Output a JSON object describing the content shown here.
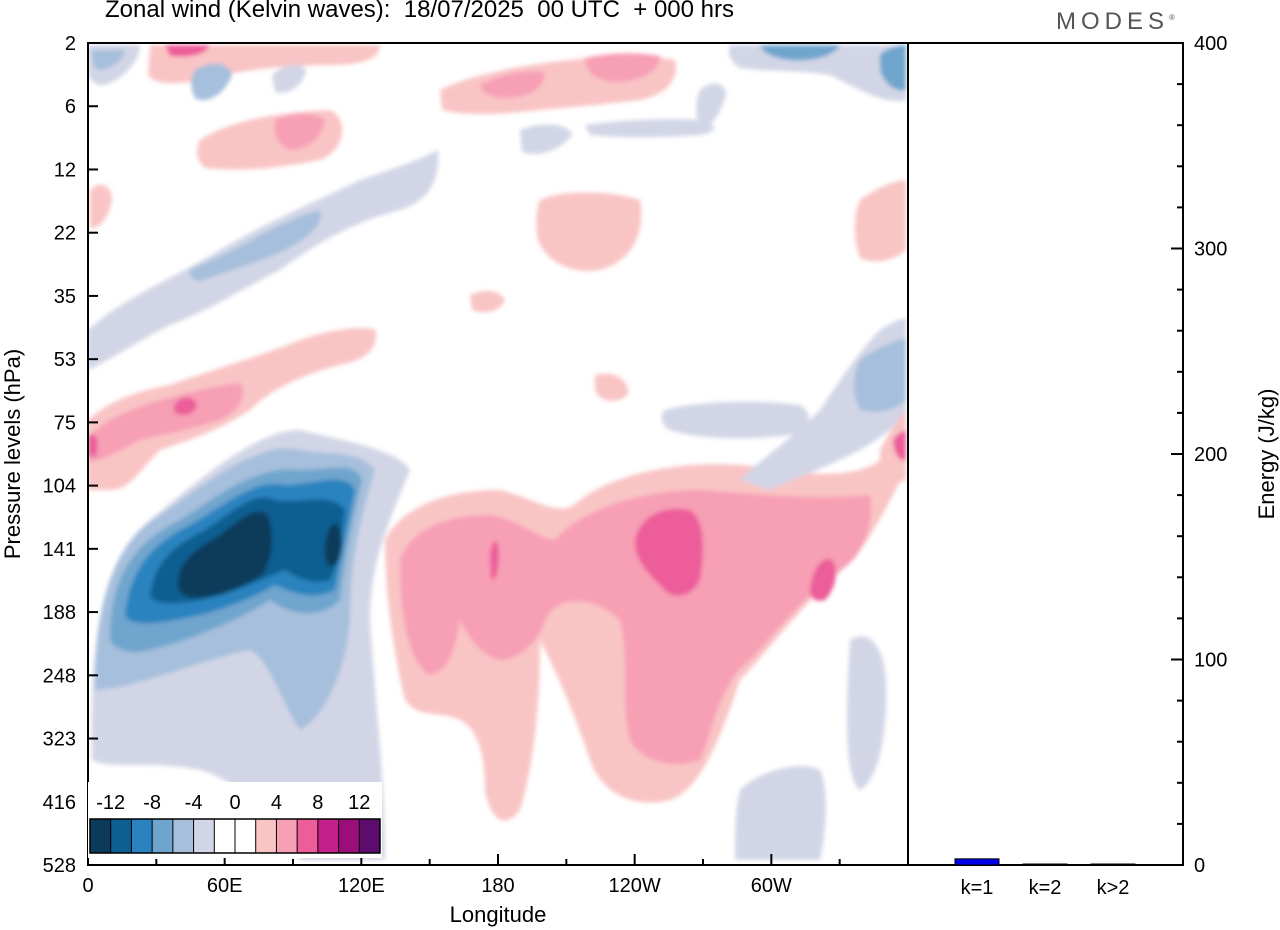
{
  "header": {
    "title": "Zonal wind (Kelvin waves):  18/07/2025  00 UTC  + 000 hrs",
    "brand": "MODES",
    "brand_mark": "®"
  },
  "chart_data": [
    {
      "type": "heatmap",
      "title": "Zonal wind (Kelvin waves):  18/07/2025  00 UTC  + 000 hrs",
      "xlabel": "Longitude",
      "ylabel": "Pressure levels (hPa)",
      "x_ticks": [
        "0",
        "60E",
        "120E",
        "180",
        "120W",
        "60W"
      ],
      "x_tick_degrees": [
        0,
        60,
        120,
        180,
        240,
        300
      ],
      "x_range": [
        0,
        360
      ],
      "y_ticks": [
        "2",
        "6",
        "12",
        "22",
        "35",
        "53",
        "75",
        "104",
        "141",
        "188",
        "248",
        "323",
        "416",
        "528"
      ],
      "y_axis": "pressure levels, top to bottom",
      "colorbar": {
        "labels": [
          "-12",
          "-8",
          "-4",
          "0",
          "4",
          "8",
          "12"
        ],
        "colors": [
          "#0b3a5a",
          "#0e5f91",
          "#2a83bf",
          "#6fa5cd",
          "#a6bfdc",
          "#d2d5e6",
          "#ffffff",
          "#ffffff",
          "#f9c4c4",
          "#f79fb5",
          "#ec5d9a",
          "#c41f8b",
          "#9b0e79",
          "#5d0b6d"
        ],
        "placement": "bottom-left"
      },
      "features": [
        {
          "sign": "negative",
          "peak": "-12",
          "lon_range": [
            10,
            120
          ],
          "levels": "104-416",
          "location": "lower troposphere, 60E-120E"
        },
        {
          "sign": "positive",
          "peak": "8",
          "lon_range": [
            130,
            340
          ],
          "levels": "104-416",
          "location": "lower troposphere, 180-60W"
        },
        {
          "sign": "positive",
          "peak": "8",
          "lon_range": [
            0,
            125
          ],
          "levels": "53-104",
          "location": "tilted band near 75 hPa"
        },
        {
          "sign": "negative",
          "peak": "-4",
          "lon_range": [
            0,
            150
          ],
          "levels": "12-53",
          "location": "tilted band in stratosphere"
        },
        {
          "sign": "positive",
          "peak": "4",
          "lon_range": [
            190,
            250
          ],
          "levels": "22-35",
          "location": "isolated patch"
        },
        {
          "sign": "negative",
          "peak": "-8",
          "lon_range": [
            300,
            360
          ],
          "levels": "53-104",
          "location": "tilted band east"
        },
        {
          "sign": "mixed",
          "peak": "8",
          "lon_range": [
            0,
            360
          ],
          "levels": "2-12",
          "location": "upper stratosphere"
        }
      ]
    },
    {
      "type": "bar",
      "categories": [
        "k=1",
        "k=2",
        "k>2"
      ],
      "values": [
        3,
        0.3,
        0.3
      ],
      "ylabel": "Energy (J/kg)",
      "ylim": [
        0,
        400
      ],
      "y_ticks": [
        "0",
        "100",
        "200",
        "300",
        "400"
      ],
      "colors": [
        "#0000e6",
        "#000000",
        "#000000"
      ]
    }
  ]
}
